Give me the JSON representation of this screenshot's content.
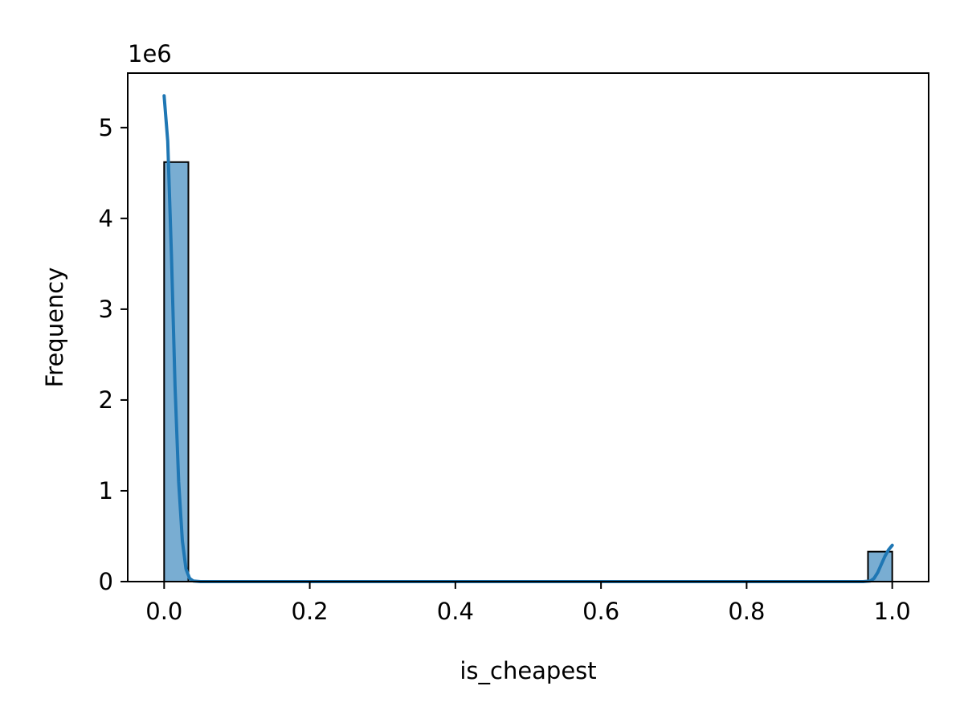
{
  "chart_data": {
    "type": "bar",
    "subtype": "histogram",
    "title": "",
    "xlabel": "is_cheapest",
    "ylabel": "Frequency",
    "y_offset_label": "1e6",
    "y_scale_factor": 1000000,
    "xlim": [
      -0.05,
      1.05
    ],
    "ylim": [
      0,
      5600000
    ],
    "xticks": [
      0.0,
      0.2,
      0.4,
      0.6,
      0.8,
      1.0
    ],
    "xtick_labels": [
      "0.0",
      "0.2",
      "0.4",
      "0.6",
      "0.8",
      "1.0"
    ],
    "yticks": [
      0,
      1000000,
      2000000,
      3000000,
      4000000,
      5000000
    ],
    "ytick_labels": [
      "0",
      "1",
      "2",
      "3",
      "4",
      "5"
    ],
    "grid": false,
    "legend": "none",
    "bins": [
      {
        "x0": 0.0,
        "x1": 0.0333,
        "value": 4620000
      },
      {
        "x0": 0.9667,
        "x1": 1.0,
        "value": 330000
      }
    ],
    "kde": {
      "x": [
        0.0,
        0.005,
        0.01,
        0.015,
        0.02,
        0.025,
        0.03,
        0.035,
        0.04,
        0.05,
        0.1,
        0.5,
        0.9,
        0.96,
        0.97,
        0.975,
        0.98,
        0.985,
        0.99,
        0.995,
        1.0
      ],
      "y": [
        5350000,
        4850000,
        3600000,
        2150000,
        1100000,
        450000,
        140000,
        35000,
        6000,
        0,
        0,
        0,
        0,
        0,
        6000,
        35000,
        100000,
        190000,
        280000,
        350000,
        400000
      ]
    },
    "colors": {
      "bar_fill": "#1f77b4",
      "bar_fill_opacity": 0.6,
      "bar_edge": "#000000",
      "kde_line": "#1f77b4"
    }
  }
}
